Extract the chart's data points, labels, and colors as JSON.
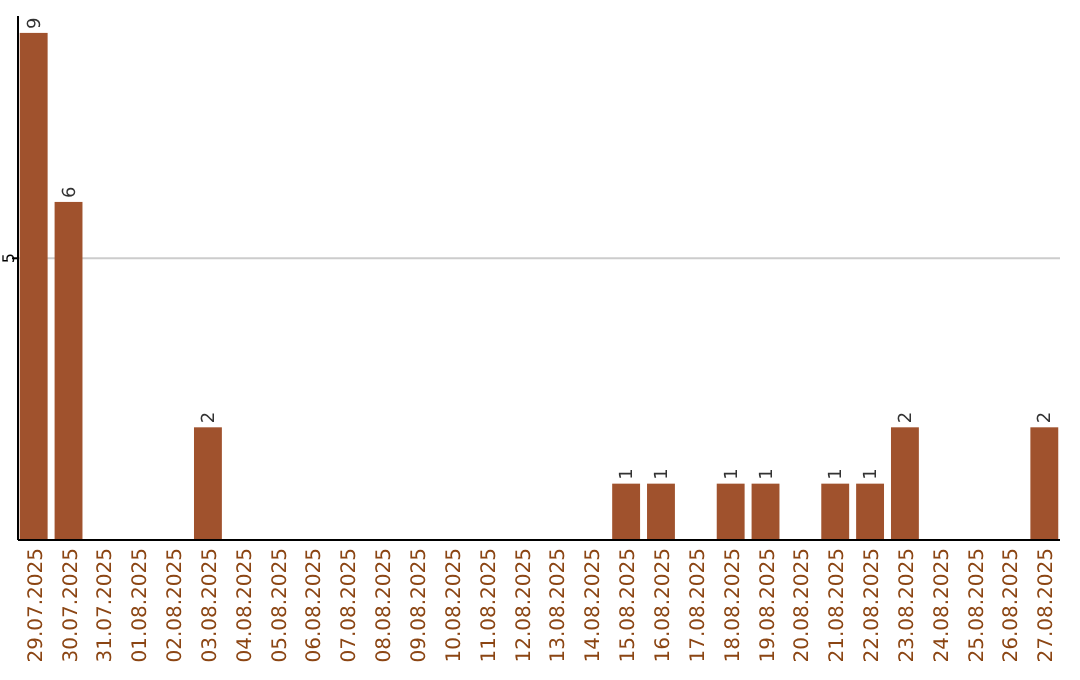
{
  "chart_data": {
    "type": "bar",
    "categories": [
      "29.07.2025",
      "30.07.2025",
      "31.07.2025",
      "01.08.2025",
      "02.08.2025",
      "03.08.2025",
      "04.08.2025",
      "05.08.2025",
      "06.08.2025",
      "07.08.2025",
      "08.08.2025",
      "09.08.2025",
      "10.08.2025",
      "11.08.2025",
      "12.08.2025",
      "13.08.2025",
      "14.08.2025",
      "15.08.2025",
      "16.08.2025",
      "17.08.2025",
      "18.08.2025",
      "19.08.2025",
      "20.08.2025",
      "21.08.2025",
      "22.08.2025",
      "23.08.2025",
      "24.08.2025",
      "25.08.2025",
      "26.08.2025",
      "27.08.2025"
    ],
    "values": [
      9,
      6,
      0,
      0,
      0,
      2,
      0,
      0,
      0,
      0,
      0,
      0,
      0,
      0,
      0,
      0,
      0,
      1,
      1,
      0,
      1,
      1,
      0,
      1,
      1,
      2,
      0,
      0,
      0,
      2
    ],
    "value_labels": [
      "9",
      "6",
      null,
      null,
      null,
      "2",
      null,
      null,
      null,
      null,
      null,
      null,
      null,
      null,
      null,
      null,
      null,
      "1",
      "1",
      null,
      "1",
      "1",
      null,
      "1",
      "1",
      "2",
      null,
      null,
      null,
      "2"
    ],
    "color": "#a0522d",
    "ylim": [
      0,
      9.3
    ],
    "yticks": [
      5
    ],
    "grid": "y"
  }
}
